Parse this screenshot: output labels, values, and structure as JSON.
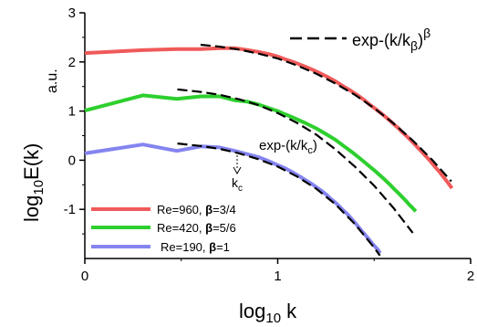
{
  "chart_data": {
    "type": "line",
    "xlabel": {
      "main": "log",
      "sub": "10",
      "tail": " k"
    },
    "ylabel": {
      "main": "log",
      "sub": "10",
      "tail": "E(k)"
    },
    "yunit": "a.u.",
    "xlim": [
      0,
      2
    ],
    "ylim": [
      -2,
      3
    ],
    "xticks": [
      "0",
      "1",
      "2"
    ],
    "yticks": [
      "-1",
      "0",
      "1",
      "2",
      "3"
    ],
    "series": [
      {
        "name": "Re=960",
        "beta": "3/4",
        "color": "#f05a5a",
        "x": [
          0,
          0.3,
          0.477,
          0.602,
          0.699,
          0.778,
          0.845,
          0.903,
          0.954,
          1.0,
          1.041,
          1.079,
          1.146,
          1.204,
          1.255,
          1.301,
          1.342,
          1.38,
          1.415,
          1.447,
          1.477,
          1.505,
          1.531,
          1.556,
          1.58,
          1.602,
          1.623,
          1.643,
          1.663,
          1.681,
          1.699,
          1.716,
          1.732,
          1.748,
          1.763,
          1.778,
          1.792,
          1.806,
          1.819,
          1.833,
          1.845,
          1.857,
          1.869,
          1.881,
          1.892,
          1.903
        ],
        "y": [
          2.18,
          2.24,
          2.26,
          2.26,
          2.28,
          2.28,
          2.24,
          2.2,
          2.16,
          2.11,
          2.05,
          2.0,
          1.9,
          1.8,
          1.7,
          1.6,
          1.5,
          1.41,
          1.32,
          1.23,
          1.13,
          1.05,
          0.97,
          0.89,
          0.81,
          0.73,
          0.66,
          0.58,
          0.51,
          0.44,
          0.37,
          0.3,
          0.23,
          0.17,
          0.1,
          0.04,
          -0.02,
          -0.09,
          -0.15,
          -0.21,
          -0.27,
          -0.33,
          -0.39,
          -0.45,
          -0.51,
          -0.57
        ]
      },
      {
        "name": "Re=420",
        "beta": "5/6",
        "color": "#2ecf2e",
        "x": [
          0,
          0.301,
          0.477,
          0.602,
          0.699,
          0.778,
          0.845,
          0.903,
          0.954,
          1.0,
          1.041,
          1.079,
          1.146,
          1.204,
          1.255,
          1.301,
          1.342,
          1.38,
          1.415,
          1.447,
          1.477,
          1.505,
          1.531,
          1.556,
          1.58,
          1.602,
          1.623,
          1.643,
          1.663,
          1.681,
          1.699,
          1.716
        ],
        "y": [
          1.01,
          1.32,
          1.25,
          1.3,
          1.3,
          1.22,
          1.19,
          1.13,
          1.06,
          1.0,
          0.93,
          0.87,
          0.75,
          0.64,
          0.52,
          0.41,
          0.29,
          0.18,
          0.07,
          -0.03,
          -0.13,
          -0.22,
          -0.31,
          -0.4,
          -0.49,
          -0.58,
          -0.66,
          -0.74,
          -0.82,
          -0.9,
          -0.97,
          -1.04
        ]
      },
      {
        "name": "Re=190",
        "beta": "1",
        "color": "#8484f0",
        "x": [
          0,
          0.301,
          0.477,
          0.602,
          0.699,
          0.778,
          0.845,
          0.903,
          0.954,
          1.0,
          1.041,
          1.079,
          1.114,
          1.146,
          1.176,
          1.204,
          1.23,
          1.255,
          1.279,
          1.301,
          1.322,
          1.342,
          1.362,
          1.38,
          1.398,
          1.415,
          1.431,
          1.447,
          1.462,
          1.477,
          1.491,
          1.505,
          1.519,
          1.531
        ],
        "y": [
          0.14,
          0.32,
          0.19,
          0.28,
          0.26,
          0.19,
          0.12,
          0.06,
          -0.02,
          -0.1,
          -0.17,
          -0.25,
          -0.33,
          -0.41,
          -0.48,
          -0.56,
          -0.63,
          -0.71,
          -0.8,
          -0.87,
          -0.95,
          -1.03,
          -1.1,
          -1.18,
          -1.26,
          -1.34,
          -1.42,
          -1.49,
          -1.56,
          -1.63,
          -1.7,
          -1.76,
          -1.82,
          -1.89
        ]
      }
    ],
    "fits": [
      {
        "x": [
          0.6,
          0.7,
          0.8,
          0.9,
          1.0,
          1.1,
          1.2,
          1.3,
          1.4,
          1.5,
          1.6,
          1.7,
          1.8,
          1.9
        ],
        "y": [
          2.35,
          2.31,
          2.25,
          2.17,
          2.07,
          1.93,
          1.76,
          1.56,
          1.33,
          1.06,
          0.75,
          0.4,
          0.01,
          -0.43
        ]
      },
      {
        "x": [
          0.48,
          0.6,
          0.7,
          0.8,
          0.9,
          1.0,
          1.1,
          1.2,
          1.3,
          1.4,
          1.5,
          1.6,
          1.7
        ],
        "y": [
          1.44,
          1.39,
          1.33,
          1.24,
          1.12,
          0.96,
          0.76,
          0.52,
          0.22,
          -0.13,
          -0.52,
          -0.97,
          -1.48
        ]
      },
      {
        "x": [
          0.48,
          0.6,
          0.7,
          0.8,
          0.9,
          1.0,
          1.1,
          1.2,
          1.3,
          1.4,
          1.5,
          1.53
        ],
        "y": [
          0.34,
          0.29,
          0.23,
          0.14,
          0.02,
          -0.13,
          -0.33,
          -0.58,
          -0.9,
          -1.3,
          -1.78,
          -1.94
        ]
      }
    ],
    "annotations": {
      "fit_beta": {
        "main": "exp-(k/k",
        "sub": "β",
        "tail": ")",
        "sup": "β"
      },
      "fit_c": {
        "main": "exp-(k/k",
        "sub": "c",
        "tail": ")"
      },
      "kc": {
        "main": "k",
        "sub": "c"
      }
    },
    "legend": {
      "placement": "bottom-left",
      "beta_symbol": "β",
      "separator": ", "
    }
  }
}
